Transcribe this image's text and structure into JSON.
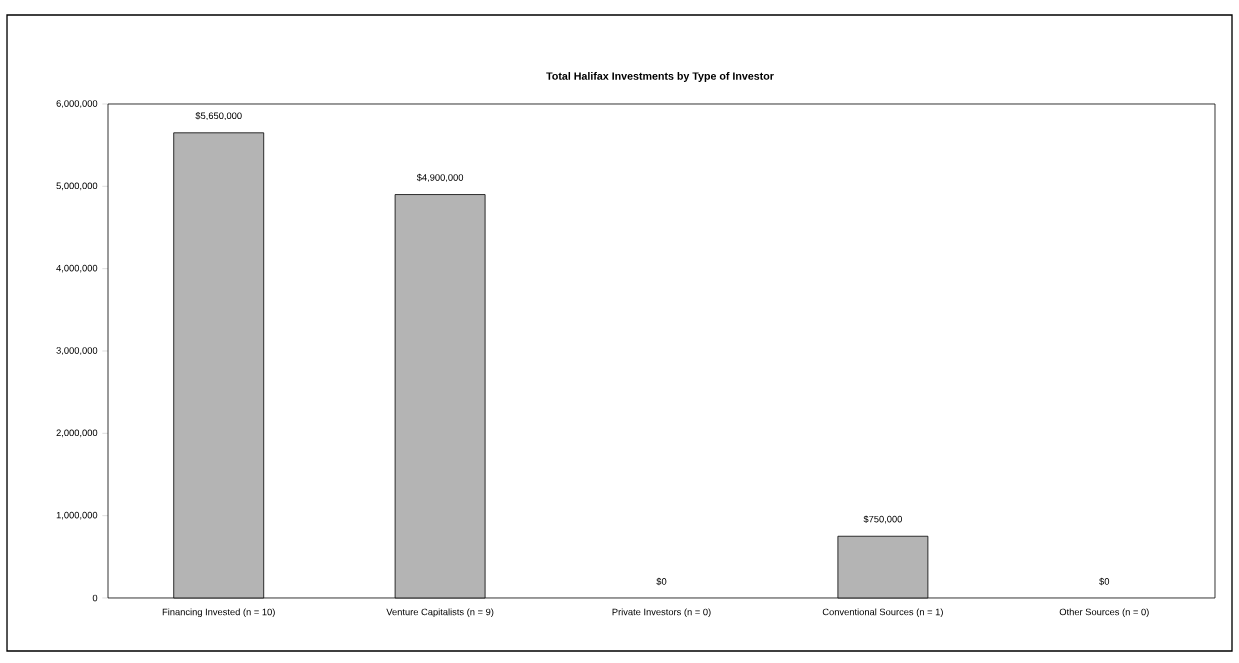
{
  "chart_data": {
    "type": "bar",
    "title": "Total Halifax Investments by Type of Investor",
    "categories": [
      "Financing Invested (n = 10)",
      "Venture Capitalists (n = 9)",
      "Private Investors (n = 0)",
      "Conventional Sources (n = 1)",
      "Other Sources (n = 0)"
    ],
    "values": [
      5650000,
      4900000,
      0,
      750000,
      0
    ],
    "value_labels": [
      "$5,650,000",
      "$4,900,000",
      "$0",
      "$750,000",
      "$0"
    ],
    "color": "#b4b4b4",
    "ylim": [
      0,
      6000000
    ],
    "yticks": [
      0,
      {
        "value": 1000000,
        "label": "1,000,000"
      },
      {
        "value": 2000000,
        "label": "2,000,000"
      },
      {
        "value": 3000000,
        "label": "3,000,000"
      },
      {
        "value": 4000000,
        "label": "4,000,000"
      },
      {
        "value": 5000000,
        "label": "5,000,000"
      },
      {
        "value": 6000000,
        "label": "6,000,000"
      }
    ],
    "grid": false
  }
}
